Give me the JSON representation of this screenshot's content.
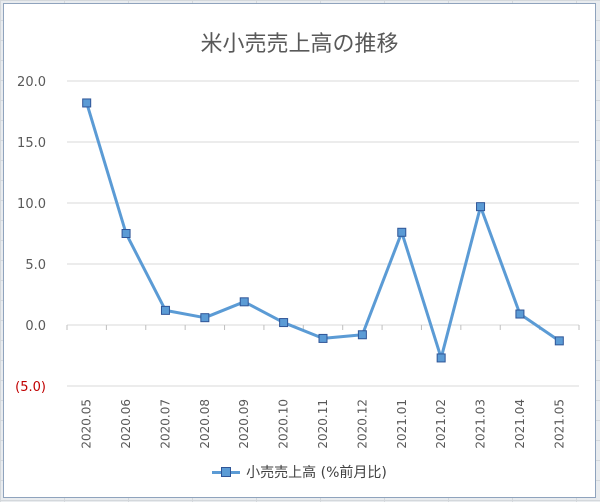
{
  "chart_data": {
    "type": "line",
    "title": "米小売売上高の推移",
    "categories": [
      "2020.05",
      "2020.06",
      "2020.07",
      "2020.08",
      "2020.09",
      "2020.10",
      "2020.11",
      "2020.12",
      "2021.01",
      "2021.02",
      "2021.03",
      "2021.04",
      "2021.05"
    ],
    "series": [
      {
        "name": "小売売上高 (%前月比)",
        "values": [
          18.2,
          7.5,
          1.2,
          0.6,
          1.9,
          0.2,
          -1.1,
          -0.8,
          7.6,
          -2.7,
          9.7,
          0.9,
          -1.3
        ]
      }
    ],
    "yticks": [
      {
        "value": 20,
        "label": "20.0"
      },
      {
        "value": 15,
        "label": "15.0"
      },
      {
        "value": 10,
        "label": "10.0"
      },
      {
        "value": 5,
        "label": "5.0"
      },
      {
        "value": 0,
        "label": "0.0"
      },
      {
        "value": -5,
        "label": "(5.0)"
      }
    ],
    "ylim": [
      -5,
      20
    ],
    "xlabel": "",
    "ylabel": "",
    "grid": true,
    "legend": "bottom",
    "colors": {
      "line": "#5b9bd5",
      "marker_border": "#2f5597",
      "negative_label": "#c00000",
      "tick_label": "#595959",
      "gridline": "#d9d9d9"
    }
  }
}
